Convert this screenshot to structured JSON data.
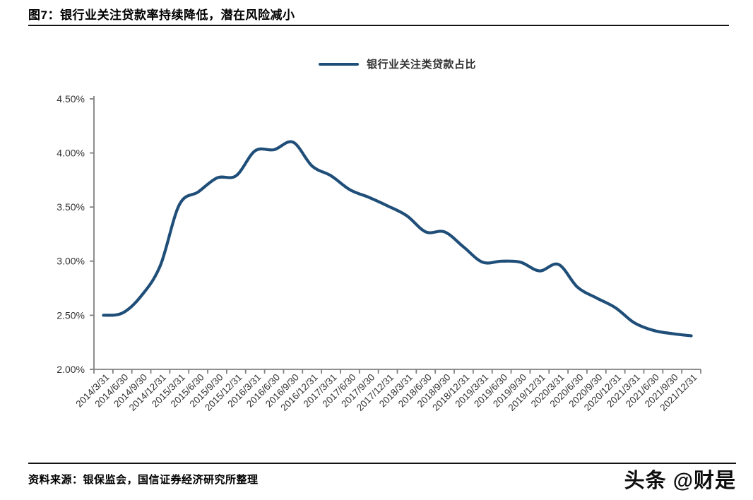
{
  "page": {
    "title": "图7：银行业关注贷款率持续降低，潜在风险减小",
    "source_note": "资料来源：银保监会，国信证券经济研究所整理",
    "watermark": "头条 @财是"
  },
  "chart_data": {
    "type": "line",
    "title": "图7：银行业关注贷款率持续降低，潜在风险减小",
    "legend": [
      "银行业关注类贷款占比"
    ],
    "legend_position": "top-center",
    "line_color": "#1F4E79",
    "axis_color": "#808080",
    "tick_label_color": "#333333",
    "grid": false,
    "ylim": [
      2.0,
      4.5
    ],
    "y_tick_step": 0.5,
    "y_tick_labels": [
      "2.00%",
      "2.50%",
      "3.00%",
      "3.50%",
      "4.00%",
      "4.50%"
    ],
    "x_labels": [
      "2014/3/31",
      "2014/6/30",
      "2014/9/30",
      "2014/12/31",
      "2015/3/31",
      "2015/6/30",
      "2015/9/30",
      "2015/12/31",
      "2016/3/31",
      "2016/6/30",
      "2016/9/30",
      "2016/12/31",
      "2017/3/31",
      "2017/6/30",
      "2017/9/30",
      "2017/12/31",
      "2018/3/31",
      "2018/6/30",
      "2018/9/30",
      "2018/12/31",
      "2019/3/31",
      "2019/6/30",
      "2019/9/30",
      "2019/12/31",
      "2020/3/31",
      "2020/6/30",
      "2020/9/30",
      "2020/12/31",
      "2021/3/31",
      "2021/6/30",
      "2021/9/30",
      "2021/12/31"
    ],
    "series": [
      {
        "name": "银行业关注类贷款占比",
        "unit": "%",
        "values": [
          2.5,
          2.52,
          2.68,
          2.96,
          3.52,
          3.64,
          3.77,
          3.79,
          4.02,
          4.03,
          4.1,
          3.88,
          3.79,
          3.66,
          3.59,
          3.51,
          3.42,
          3.27,
          3.27,
          3.13,
          2.99,
          3.0,
          2.99,
          2.91,
          2.97,
          2.76,
          2.66,
          2.57,
          2.43,
          2.36,
          2.33,
          2.31
        ]
      }
    ]
  }
}
